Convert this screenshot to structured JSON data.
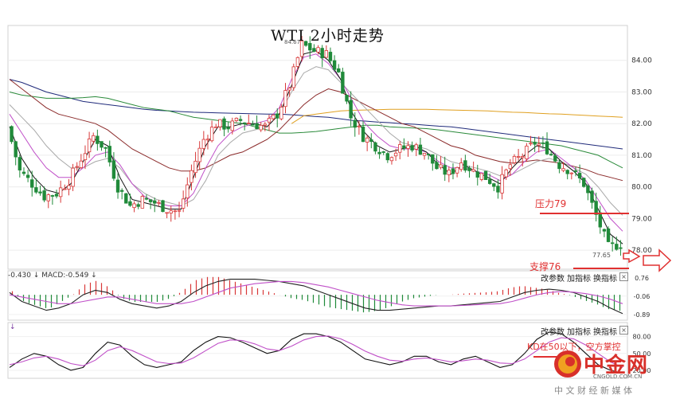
{
  "title": "WTI 2小时走势",
  "chart_data": [
    {
      "type": "candlestick",
      "title": "WTI 2小时走势",
      "ylim": [
        77.6,
        85.0
      ],
      "y_ticks": [
        "84.00",
        "83.00",
        "82.00",
        "81.00",
        "80.00",
        "79.00",
        "78.00"
      ],
      "high_label": "84.67",
      "low_label": "77.65",
      "annotations": [
        {
          "text": "压力79",
          "level": 79.0,
          "color": "#e03030"
        },
        {
          "text": "支撑76",
          "color": "#e03030"
        }
      ],
      "close_path": [
        81.9,
        80.5,
        80.1,
        79.7,
        79.8,
        80.2,
        80.9,
        81.6,
        81.2,
        80.0,
        79.4,
        79.6,
        79.5,
        79.3,
        79.2,
        80.5,
        81.5,
        82.0,
        81.9,
        82.1,
        82.0,
        81.9,
        82.3,
        83.2,
        84.5,
        84.3,
        84.2,
        83.6,
        82.2,
        81.6,
        81.3,
        81.0,
        81.2,
        81.3,
        81.1,
        80.6,
        80.4,
        80.8,
        80.5,
        80.3,
        80.0,
        80.7,
        81.0,
        81.4,
        81.2,
        80.7,
        80.5,
        80.1,
        79.1,
        78.1,
        78.2
      ],
      "moving_averages": [
        {
          "color": "#1f2a7a",
          "values": [
            83.4,
            83.3,
            83.15,
            83.0,
            82.9,
            82.8,
            82.7,
            82.65,
            82.6,
            82.55,
            82.5,
            82.45,
            82.42,
            82.4,
            82.38,
            82.36,
            82.35,
            82.34,
            82.33,
            82.32,
            82.31,
            82.3,
            82.3,
            82.28,
            82.25,
            82.22,
            82.2,
            82.15,
            82.1,
            82.08,
            82.05,
            82.03,
            82.0,
            81.98,
            81.95,
            81.92,
            81.9,
            81.85,
            81.8,
            81.75,
            81.7,
            81.65,
            81.6,
            81.55,
            81.5,
            81.45,
            81.4,
            81.35,
            81.3,
            81.25,
            81.2
          ]
        },
        {
          "color": "#e0a020",
          "values": [
            null,
            null,
            null,
            null,
            null,
            null,
            null,
            null,
            null,
            null,
            null,
            null,
            null,
            null,
            null,
            null,
            null,
            null,
            null,
            null,
            null,
            null,
            null,
            82.0,
            82.25,
            82.3,
            82.35,
            82.4,
            82.42,
            82.43,
            82.44,
            82.45,
            82.45,
            82.45,
            82.45,
            82.44,
            82.43,
            82.42,
            82.41,
            82.4,
            82.38,
            82.36,
            82.35,
            82.33,
            82.31,
            82.3,
            82.28,
            82.26,
            82.24,
            82.22,
            82.2
          ]
        },
        {
          "color": "#2a8a3a",
          "values": [
            83.0,
            82.9,
            82.85,
            82.8,
            82.8,
            82.8,
            82.82,
            82.85,
            82.8,
            82.7,
            82.6,
            82.5,
            82.45,
            82.4,
            82.3,
            82.2,
            82.15,
            82.1,
            82.05,
            82.0,
            81.9,
            81.8,
            81.7,
            81.7,
            81.72,
            81.75,
            81.8,
            81.85,
            81.9,
            81.95,
            81.95,
            81.9,
            81.88,
            81.86,
            81.84,
            81.8,
            81.75,
            81.7,
            81.65,
            81.6,
            81.55,
            81.5,
            81.45,
            81.4,
            81.35,
            81.3,
            81.2,
            81.1,
            81.0,
            80.8,
            80.6
          ]
        },
        {
          "color": "#8b2a2a",
          "values": [
            83.4,
            83.1,
            82.8,
            82.5,
            82.3,
            82.2,
            82.1,
            82.0,
            81.8,
            81.5,
            81.2,
            81.0,
            80.8,
            80.6,
            80.5,
            80.5,
            80.6,
            80.8,
            81.0,
            81.1,
            81.3,
            81.5,
            81.8,
            82.2,
            82.6,
            82.9,
            83.1,
            83.0,
            82.8,
            82.6,
            82.4,
            82.2,
            82.0,
            81.9,
            81.7,
            81.5,
            81.3,
            81.2,
            81.0,
            80.9,
            80.8,
            80.75,
            80.8,
            80.85,
            80.8,
            80.75,
            80.65,
            80.55,
            80.4,
            80.3,
            80.2
          ]
        },
        {
          "color": "#a8a8a8",
          "values": [
            82.6,
            82.2,
            81.8,
            81.3,
            80.9,
            80.6,
            80.6,
            80.8,
            80.9,
            80.6,
            80.1,
            79.8,
            79.6,
            79.5,
            79.4,
            79.6,
            80.2,
            81.0,
            81.4,
            81.7,
            81.8,
            81.9,
            82.3,
            83.0,
            83.6,
            83.8,
            83.7,
            83.3,
            82.9,
            82.5,
            82.1,
            81.7,
            81.4,
            81.3,
            81.2,
            81.0,
            80.8,
            80.7,
            80.6,
            80.5,
            80.35,
            80.4,
            80.6,
            80.8,
            80.9,
            80.8,
            80.6,
            80.4,
            80.0,
            79.5,
            79.1
          ]
        },
        {
          "color": "#c050c8",
          "values": [
            82.3,
            81.7,
            81.1,
            80.6,
            80.3,
            80.3,
            80.6,
            81.0,
            81.1,
            80.7,
            80.1,
            79.7,
            79.5,
            79.4,
            79.4,
            79.8,
            80.6,
            81.3,
            81.7,
            81.9,
            82.0,
            82.1,
            82.5,
            83.4,
            84.1,
            84.2,
            83.9,
            83.4,
            82.7,
            82.0,
            81.6,
            81.3,
            81.2,
            81.2,
            81.1,
            80.8,
            80.6,
            80.6,
            80.5,
            80.4,
            80.2,
            80.4,
            80.8,
            81.1,
            81.2,
            80.9,
            80.6,
            80.2,
            79.6,
            79.0,
            78.6
          ]
        },
        {
          "color": "#111111",
          "values": [
            81.9,
            80.9,
            80.3,
            79.9,
            79.8,
            80.1,
            80.8,
            81.5,
            81.3,
            80.3,
            79.6,
            79.5,
            79.4,
            79.3,
            79.3,
            80.3,
            81.3,
            81.9,
            81.9,
            82.0,
            82.0,
            81.9,
            82.3,
            83.2,
            84.2,
            84.3,
            84.0,
            83.4,
            82.3,
            81.7,
            81.3,
            81.1,
            81.2,
            81.3,
            81.1,
            80.7,
            80.4,
            80.7,
            80.5,
            80.3,
            80.1,
            80.6,
            81.0,
            81.3,
            81.2,
            80.8,
            80.5,
            80.1,
            79.3,
            78.5,
            78.2
          ]
        }
      ]
    },
    {
      "type": "macd",
      "header": "-0.430 ↓ MACD:-0.549 ↓",
      "ylim": [
        -1.0,
        0.9
      ],
      "y_ticks": [
        "0.76",
        "-0.06",
        "-0.89"
      ],
      "dif": [
        0.1,
        -0.3,
        -0.5,
        -0.7,
        -0.6,
        -0.4,
        0.0,
        0.2,
        0.1,
        -0.2,
        -0.4,
        -0.5,
        -0.6,
        -0.5,
        -0.3,
        0.1,
        0.4,
        0.6,
        0.7,
        0.7,
        0.7,
        0.65,
        0.6,
        0.5,
        0.4,
        0.2,
        0.0,
        -0.2,
        -0.4,
        -0.6,
        -0.7,
        -0.7,
        -0.65,
        -0.6,
        -0.55,
        -0.5,
        -0.5,
        -0.45,
        -0.4,
        -0.35,
        -0.3,
        -0.1,
        0.1,
        0.2,
        0.25,
        0.2,
        0.1,
        -0.1,
        -0.3,
        -0.6,
        -0.85
      ],
      "dea": [
        0.0,
        -0.1,
        -0.2,
        -0.3,
        -0.4,
        -0.4,
        -0.3,
        -0.2,
        -0.1,
        -0.1,
        -0.2,
        -0.3,
        -0.4,
        -0.4,
        -0.4,
        -0.3,
        -0.1,
        0.1,
        0.3,
        0.4,
        0.5,
        0.55,
        0.6,
        0.6,
        0.55,
        0.45,
        0.35,
        0.2,
        0.05,
        -0.1,
        -0.25,
        -0.35,
        -0.45,
        -0.5,
        -0.5,
        -0.5,
        -0.5,
        -0.48,
        -0.45,
        -0.42,
        -0.4,
        -0.3,
        -0.15,
        0.0,
        0.1,
        0.15,
        0.12,
        0.05,
        -0.05,
        -0.2,
        -0.4
      ]
    },
    {
      "type": "kd",
      "annotation": "KD在50以下，空方掌控",
      "ylim": [
        10,
        95
      ],
      "y_ticks": [
        "80.00",
        "50.00",
        "20.00"
      ],
      "k": [
        25,
        40,
        50,
        45,
        30,
        20,
        25,
        50,
        70,
        65,
        45,
        30,
        25,
        30,
        35,
        55,
        70,
        80,
        78,
        70,
        60,
        50,
        55,
        75,
        85,
        85,
        80,
        70,
        55,
        40,
        35,
        30,
        35,
        45,
        45,
        35,
        30,
        40,
        45,
        35,
        25,
        30,
        50,
        75,
        88,
        85,
        70,
        50,
        30,
        20,
        15
      ],
      "d": [
        30,
        35,
        42,
        45,
        40,
        32,
        28,
        38,
        55,
        62,
        55,
        45,
        35,
        32,
        33,
        42,
        55,
        68,
        74,
        73,
        67,
        58,
        55,
        63,
        74,
        80,
        81,
        76,
        66,
        54,
        45,
        38,
        36,
        40,
        42,
        39,
        35,
        37,
        40,
        38,
        33,
        32,
        40,
        55,
        70,
        78,
        76,
        65,
        50,
        35,
        25
      ]
    }
  ],
  "panel_controls": {
    "change_params": "改参数",
    "add_indicator": "加指标",
    "switch_indicator": "换指标",
    "close": "×"
  },
  "kd_header_arrow": "↓",
  "logo": {
    "brand": "中金网",
    "domain": "CNGOLD.COM.CN",
    "tagline": "中 文 财 经 新 媒 体",
    "colors": {
      "red": "#d8302a",
      "orange": "#f0a020"
    }
  },
  "colors": {
    "up": "#d83838",
    "down": "#208a3a",
    "annotation": "#e03030",
    "dif": "#222222",
    "dea": "#c050c8"
  }
}
